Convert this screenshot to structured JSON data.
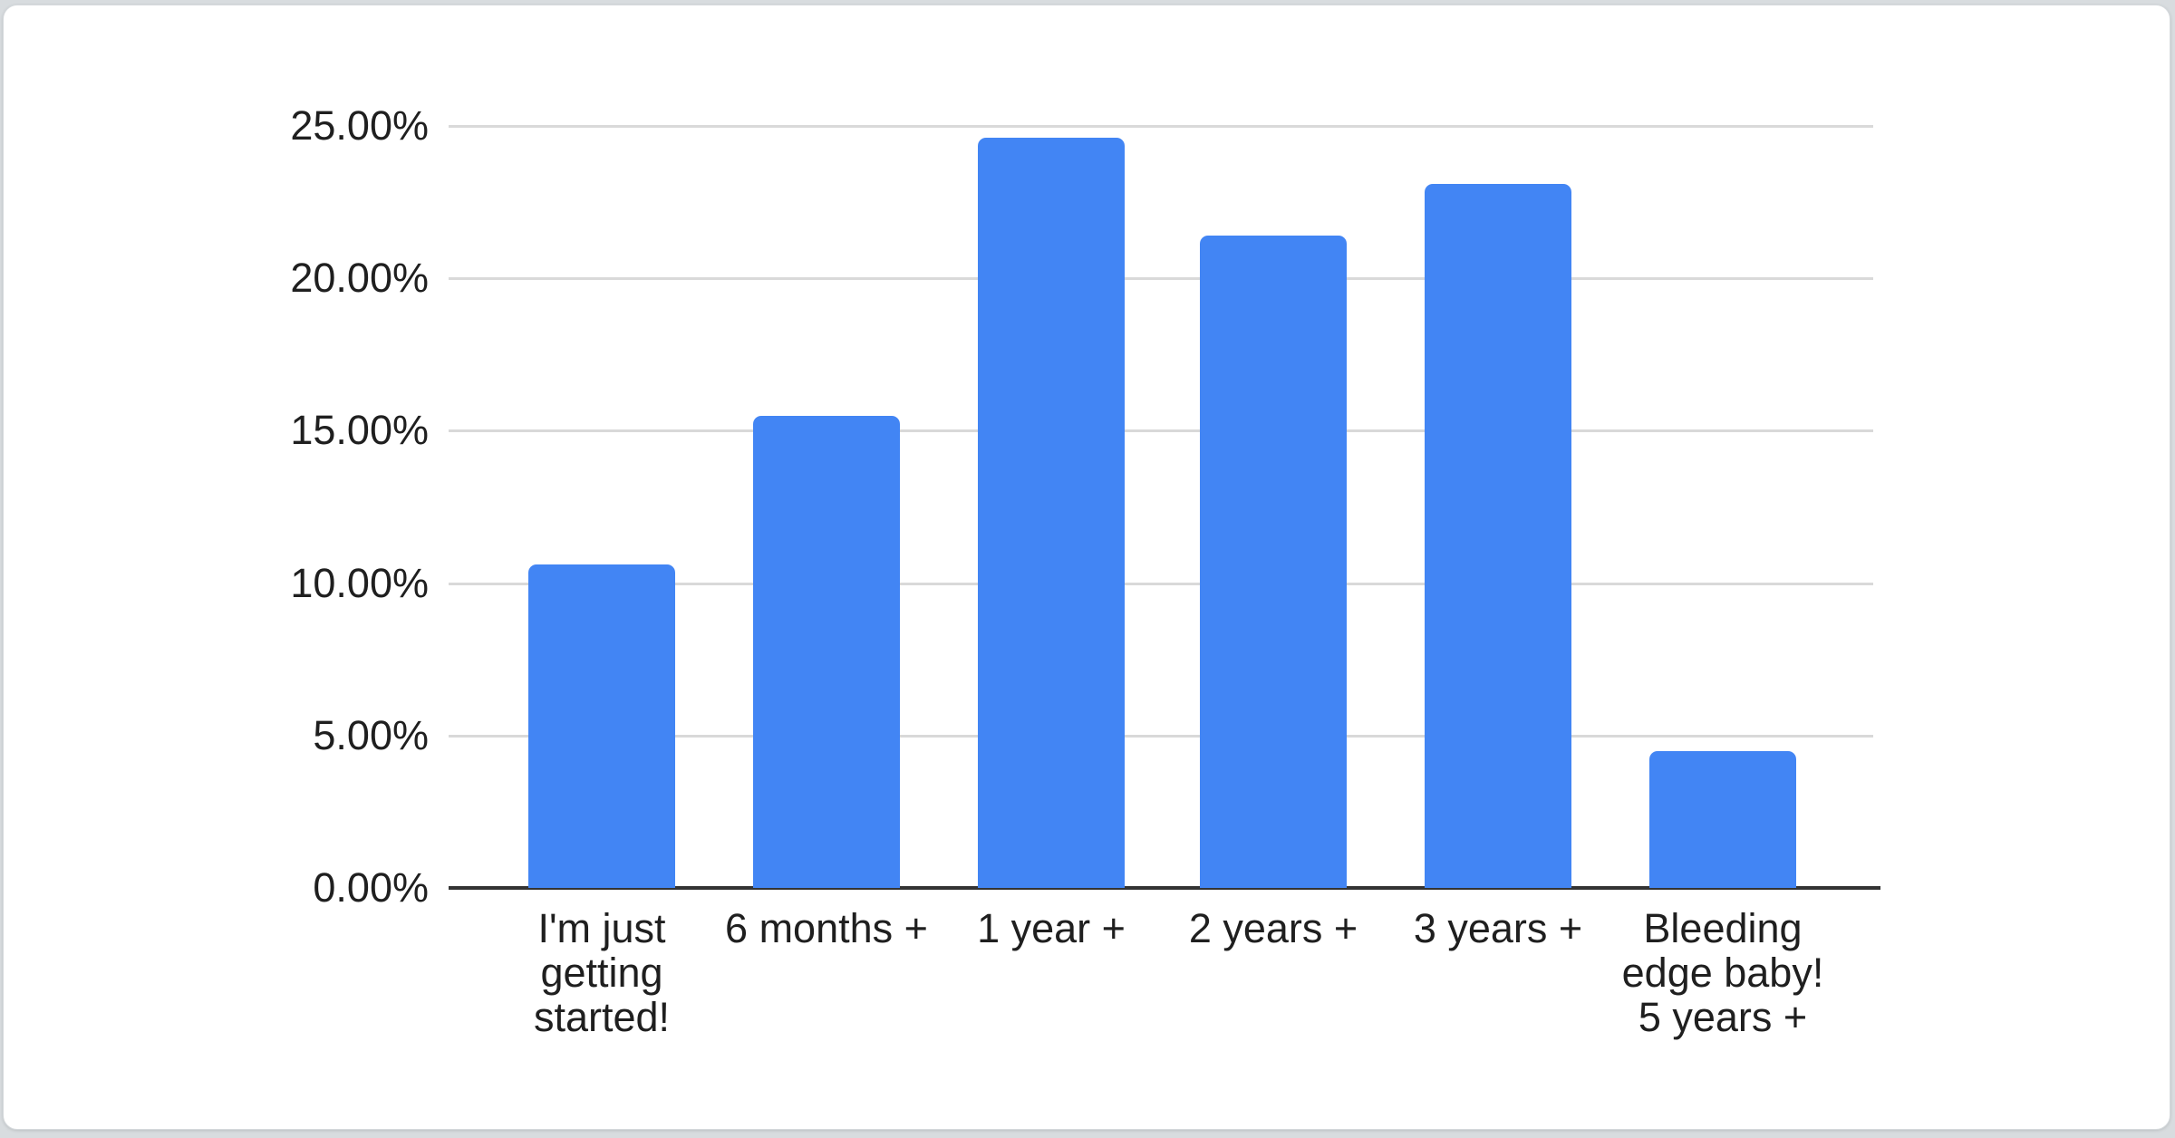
{
  "page": {
    "background_color": "#d8dcdf",
    "card_background_color": "#ffffff"
  },
  "chart_data": {
    "type": "bar",
    "title": "",
    "categories": [
      "I'm just getting started!",
      "6 months +",
      "1 year +",
      "2 years +",
      "3 years +",
      "Bleeding edge baby! 5 years +"
    ],
    "values": [
      10.6,
      15.5,
      24.6,
      21.4,
      23.1,
      4.5
    ],
    "value_unit": "%",
    "bar_color": "#4285f4",
    "axis": {
      "y_tick_values": [
        0,
        5,
        10,
        15,
        20,
        25
      ],
      "y_tick_labels": [
        "0.00%",
        "5.00%",
        "10.00%",
        "15.00%",
        "20.00%",
        "25.00%"
      ],
      "ylim": [
        0,
        25
      ],
      "grid": true,
      "gridline_color": "#d9d9d9",
      "baseline_color": "#333333",
      "label_color": "#1f1f1f"
    },
    "legend": "none",
    "xlabel": "",
    "ylabel": ""
  }
}
